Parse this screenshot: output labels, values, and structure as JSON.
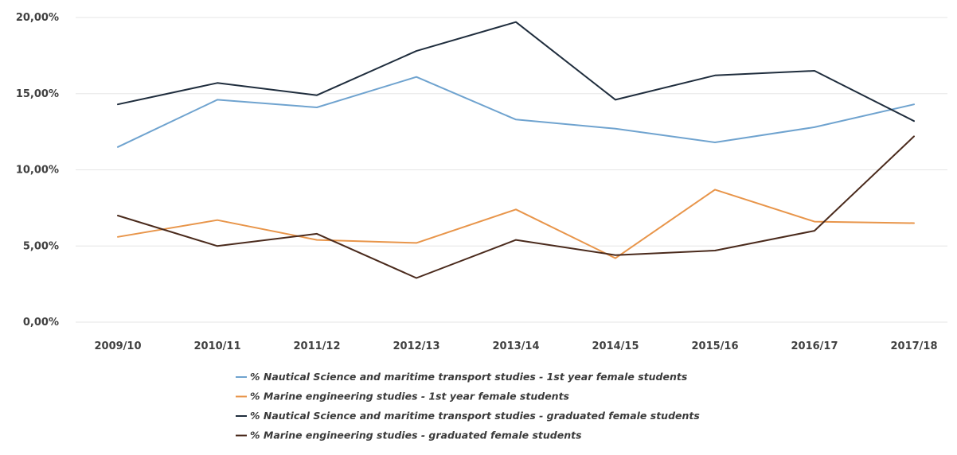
{
  "chart_data": {
    "type": "line",
    "title": "",
    "xlabel": "",
    "ylabel": "",
    "categories": [
      "2009/10",
      "2010/11",
      "2011/12",
      "2012/13",
      "2013/14",
      "2014/15",
      "2015/16",
      "2016/17",
      "2017/18"
    ],
    "y_ticks": [
      "0,00%",
      "5,00%",
      "10,00%",
      "15,00%",
      "20,00%"
    ],
    "y_tick_values": [
      0,
      5,
      10,
      15,
      20
    ],
    "ylim": [
      0,
      20
    ],
    "grid": true,
    "legend_position": "bottom",
    "series": [
      {
        "name": "% Nautical Science and maritime transport studies - 1st year female students",
        "color": "#6fa3cf",
        "values": [
          11.5,
          14.6,
          14.1,
          16.1,
          13.3,
          12.7,
          11.8,
          12.8,
          14.3
        ]
      },
      {
        "name": "% Marine engineering studies - 1st year female students",
        "color": "#e8954a",
        "values": [
          5.6,
          6.7,
          5.4,
          5.2,
          7.4,
          4.2,
          8.7,
          6.6,
          6.5
        ]
      },
      {
        "name": "% Nautical Science and maritime transport studies - graduated female students",
        "color": "#1f2d3d",
        "values": [
          14.3,
          15.7,
          14.9,
          17.8,
          19.7,
          14.6,
          16.2,
          16.5,
          13.2
        ]
      },
      {
        "name": "% Marine engineering studies - graduated female students",
        "color": "#4a2a1c",
        "values": [
          7.0,
          5.0,
          5.8,
          2.9,
          5.4,
          4.4,
          4.7,
          6.0,
          12.2
        ]
      }
    ]
  }
}
